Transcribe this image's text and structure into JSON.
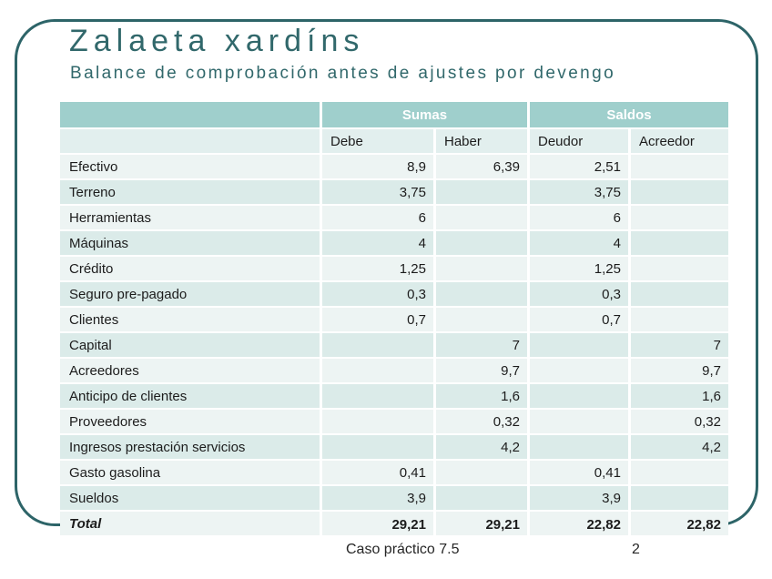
{
  "slide": {
    "title": "Zalaeta xardíns",
    "subtitle": "Balance de comprobación antes de ajustes por devengo",
    "footer": {
      "caption": "Caso práctico 7.5",
      "page_number": "2"
    }
  },
  "colors": {
    "frame_teal": "#2d6468",
    "title_teal": "#31686b",
    "header_band": "#9fcfcc",
    "row_light": "#edf4f3",
    "row_dark": "#dbebe9",
    "subheader_bg": "#e2efee"
  },
  "table": {
    "groups": {
      "sumas": "Sumas",
      "saldos": "Saldos"
    },
    "columns": {
      "debe": "Debe",
      "haber": "Haber",
      "deudor": "Deudor",
      "acreedor": "Acreedor"
    },
    "rows": [
      {
        "name": "Efectivo",
        "debe": "8,9",
        "haber": "6,39",
        "deudor": "2,51",
        "acreedor": ""
      },
      {
        "name": "Terreno",
        "debe": "3,75",
        "haber": "",
        "deudor": "3,75",
        "acreedor": ""
      },
      {
        "name": "Herramientas",
        "debe": "6",
        "haber": "",
        "deudor": "6",
        "acreedor": ""
      },
      {
        "name": "Máquinas",
        "debe": "4",
        "haber": "",
        "deudor": "4",
        "acreedor": ""
      },
      {
        "name": "Crédito",
        "debe": "1,25",
        "haber": "",
        "deudor": "1,25",
        "acreedor": ""
      },
      {
        "name": "Seguro pre-pagado",
        "debe": "0,3",
        "haber": "",
        "deudor": "0,3",
        "acreedor": ""
      },
      {
        "name": "Clientes",
        "debe": "0,7",
        "haber": "",
        "deudor": "0,7",
        "acreedor": ""
      },
      {
        "name": "Capital",
        "debe": "",
        "haber": "7",
        "deudor": "",
        "acreedor": "7"
      },
      {
        "name": "Acreedores",
        "debe": "",
        "haber": "9,7",
        "deudor": "",
        "acreedor": "9,7"
      },
      {
        "name": "Anticipo de clientes",
        "debe": "",
        "haber": "1,6",
        "deudor": "",
        "acreedor": "1,6"
      },
      {
        "name": "Proveedores",
        "debe": "",
        "haber": "0,32",
        "deudor": "",
        "acreedor": "0,32"
      },
      {
        "name": "Ingresos prestación servicios",
        "debe": "",
        "haber": "4,2",
        "deudor": "",
        "acreedor": "4,2"
      },
      {
        "name": "Gasto gasolina",
        "debe": "0,41",
        "haber": "",
        "deudor": "0,41",
        "acreedor": ""
      },
      {
        "name": "Sueldos",
        "debe": "3,9",
        "haber": "",
        "deudor": "3,9",
        "acreedor": ""
      }
    ],
    "total": {
      "name": "Total",
      "debe": "29,21",
      "haber": "29,21",
      "deudor": "22,82",
      "acreedor": "22,82"
    }
  }
}
